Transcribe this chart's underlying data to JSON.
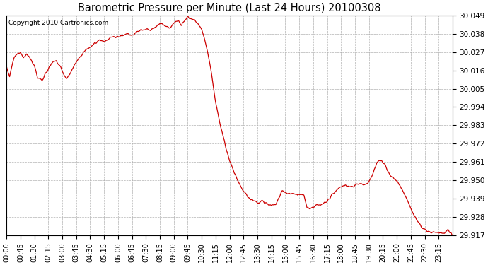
{
  "title": "Barometric Pressure per Minute (Last 24 Hours) 20100308",
  "copyright": "Copyright 2010 Cartronics.com",
  "line_color": "#cc0000",
  "bg_color": "#ffffff",
  "grid_color": "#aaaaaa",
  "ylim": [
    29.917,
    30.049
  ],
  "yticks": [
    29.917,
    29.928,
    29.939,
    29.95,
    29.961,
    29.972,
    29.983,
    29.994,
    30.005,
    30.016,
    30.027,
    30.038,
    30.049
  ],
  "xtick_labels": [
    "00:00",
    "00:45",
    "01:30",
    "02:15",
    "03:00",
    "03:45",
    "04:30",
    "05:15",
    "06:00",
    "06:45",
    "07:30",
    "08:15",
    "09:00",
    "09:45",
    "10:30",
    "11:15",
    "12:00",
    "12:45",
    "13:30",
    "14:15",
    "15:00",
    "15:45",
    "16:30",
    "17:15",
    "18:00",
    "18:45",
    "19:30",
    "20:15",
    "21:00",
    "21:45",
    "22:30",
    "23:15"
  ],
  "waypoints": [
    [
      0,
      30.018
    ],
    [
      10,
      30.012
    ],
    [
      20,
      30.021
    ],
    [
      30,
      30.025
    ],
    [
      45,
      30.027
    ],
    [
      55,
      30.023
    ],
    [
      65,
      30.026
    ],
    [
      80,
      30.022
    ],
    [
      90,
      30.019
    ],
    [
      100,
      30.012
    ],
    [
      115,
      30.01
    ],
    [
      130,
      30.015
    ],
    [
      145,
      30.02
    ],
    [
      160,
      30.022
    ],
    [
      175,
      30.018
    ],
    [
      185,
      30.013
    ],
    [
      195,
      30.011
    ],
    [
      210,
      30.016
    ],
    [
      225,
      30.021
    ],
    [
      240,
      30.025
    ],
    [
      255,
      30.028
    ],
    [
      270,
      30.03
    ],
    [
      285,
      30.032
    ],
    [
      300,
      30.034
    ],
    [
      315,
      30.033
    ],
    [
      330,
      30.035
    ],
    [
      345,
      30.036
    ],
    [
      360,
      30.036
    ],
    [
      375,
      30.037
    ],
    [
      390,
      30.038
    ],
    [
      405,
      30.037
    ],
    [
      420,
      30.039
    ],
    [
      435,
      30.04
    ],
    [
      450,
      30.041
    ],
    [
      465,
      30.04
    ],
    [
      480,
      30.042
    ],
    [
      495,
      30.044
    ],
    [
      510,
      30.043
    ],
    [
      525,
      30.042
    ],
    [
      540,
      30.044
    ],
    [
      555,
      30.046
    ],
    [
      565,
      30.043
    ],
    [
      575,
      30.046
    ],
    [
      585,
      30.048
    ],
    [
      595,
      30.047
    ],
    [
      605,
      30.046
    ],
    [
      615,
      30.044
    ],
    [
      625,
      30.042
    ],
    [
      635,
      30.038
    ],
    [
      645,
      30.03
    ],
    [
      655,
      30.022
    ],
    [
      665,
      30.01
    ],
    [
      675,
      29.997
    ],
    [
      690,
      29.983
    ],
    [
      705,
      29.972
    ],
    [
      720,
      29.962
    ],
    [
      735,
      29.955
    ],
    [
      750,
      29.948
    ],
    [
      765,
      29.944
    ],
    [
      780,
      29.94
    ],
    [
      795,
      29.938
    ],
    [
      810,
      29.937
    ],
    [
      825,
      29.938
    ],
    [
      840,
      29.936
    ],
    [
      855,
      29.935
    ],
    [
      870,
      29.936
    ],
    [
      880,
      29.94
    ],
    [
      890,
      29.944
    ],
    [
      900,
      29.943
    ],
    [
      910,
      29.942
    ],
    [
      920,
      29.942
    ],
    [
      930,
      29.942
    ],
    [
      940,
      29.941
    ],
    [
      950,
      29.942
    ],
    [
      960,
      29.941
    ],
    [
      970,
      29.934
    ],
    [
      980,
      29.933
    ],
    [
      990,
      29.934
    ],
    [
      1000,
      29.935
    ],
    [
      1010,
      29.935
    ],
    [
      1020,
      29.936
    ],
    [
      1035,
      29.938
    ],
    [
      1050,
      29.941
    ],
    [
      1065,
      29.944
    ],
    [
      1080,
      29.946
    ],
    [
      1095,
      29.947
    ],
    [
      1110,
      29.946
    ],
    [
      1125,
      29.947
    ],
    [
      1140,
      29.948
    ],
    [
      1155,
      29.947
    ],
    [
      1165,
      29.948
    ],
    [
      1180,
      29.953
    ],
    [
      1195,
      29.96
    ],
    [
      1205,
      29.962
    ],
    [
      1215,
      29.961
    ],
    [
      1225,
      29.958
    ],
    [
      1235,
      29.954
    ],
    [
      1245,
      29.952
    ],
    [
      1255,
      29.95
    ],
    [
      1265,
      29.948
    ],
    [
      1275,
      29.945
    ],
    [
      1285,
      29.942
    ],
    [
      1295,
      29.938
    ],
    [
      1310,
      29.931
    ],
    [
      1325,
      29.926
    ],
    [
      1340,
      29.922
    ],
    [
      1355,
      29.92
    ],
    [
      1370,
      29.919
    ],
    [
      1385,
      29.919
    ],
    [
      1400,
      29.918
    ],
    [
      1415,
      29.919
    ],
    [
      1425,
      29.92
    ],
    [
      1430,
      29.919
    ],
    [
      1435,
      29.918
    ],
    [
      1439,
      29.917
    ]
  ]
}
